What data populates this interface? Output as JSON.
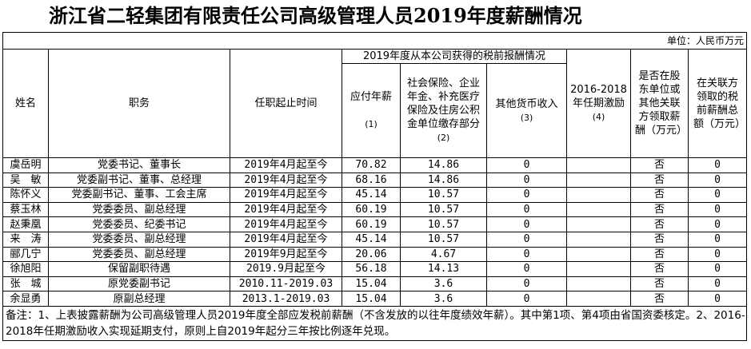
{
  "title": "浙江省二轻集团有限责任公司高级管理人员2019年度薪酬情况",
  "unit": "单位：人民币万元",
  "headers": {
    "name": "姓名",
    "position": "职务",
    "tenure": "任职起止时间",
    "group": "2019年度从本公司获得的税前报酬情况",
    "salary": "应付年薪",
    "salary_no": "(1)",
    "insurance": "社会保险、企业年金、补充医疗保险及住房公积金单位缴存部分",
    "insurance_no": "(2)",
    "other": "其他货币收入",
    "other_no": "(3)",
    "incentive": "2016-2018年任期激励",
    "incentive_no": "(4)",
    "related": "是否在股东单位或其他关联方领取薪酬（万元）",
    "related_total": "在关联方领取的税前薪酬总额（万元）"
  },
  "rows": [
    [
      "虞岳明",
      "党委书记、董事长",
      "2019年4月起至今",
      "70.82",
      "14.86",
      "0",
      "",
      "否",
      "0"
    ],
    [
      "吴　敏",
      "党委副书记、董事、总经理",
      "2019年4月起至今",
      "68.16",
      "14.86",
      "0",
      "",
      "否",
      "0"
    ],
    [
      "陈怀义",
      "党委副书记、董事、工会主席",
      "2019年4月起至今",
      "45.14",
      "10.57",
      "0",
      "",
      "否",
      "0"
    ],
    [
      "蔡玉林",
      "党委委员、副总经理",
      "2019年4月起至今",
      "60.19",
      "10.57",
      "0",
      "",
      "否",
      "0"
    ],
    [
      "赵秉凰",
      "党委委员、纪委书记",
      "2019年4月起至今",
      "60.19",
      "10.57",
      "0",
      "",
      "否",
      "0"
    ],
    [
      "来　涛",
      "党委委员、副总经理",
      "2019年4月起至今",
      "45.14",
      "10.57",
      "0",
      "",
      "否",
      "0"
    ],
    [
      "郦几宁",
      "党委委员、副总经理",
      "2019年9月起至今",
      "20.06",
      "4.67",
      "0",
      "",
      "否",
      "0"
    ],
    [
      "徐旭阳",
      "保留副职待遇",
      "2019.9月起至今",
      "56.18",
      "14.13",
      "0",
      "",
      "否",
      "0"
    ],
    [
      "张　城",
      "原党委副书记",
      "2010.11-2019.03",
      "15.04",
      "3.6",
      "0",
      "",
      "否",
      "0"
    ],
    [
      "余显勇",
      "原副总经理",
      "2013.1-2019.03",
      "15.04",
      "3.6",
      "0",
      "",
      "否",
      "0"
    ]
  ],
  "note": "备注：1、上表披露薪酬为公司高级管理人员2019年度全部应发税前薪酬（不含发放的以往年度绩效年薪）。其中第1项、第4项由省国资委核定。2、2016-2018年任期激励收入实现延期支付，原则上自2019年起分三年按比例逐年兑现。"
}
